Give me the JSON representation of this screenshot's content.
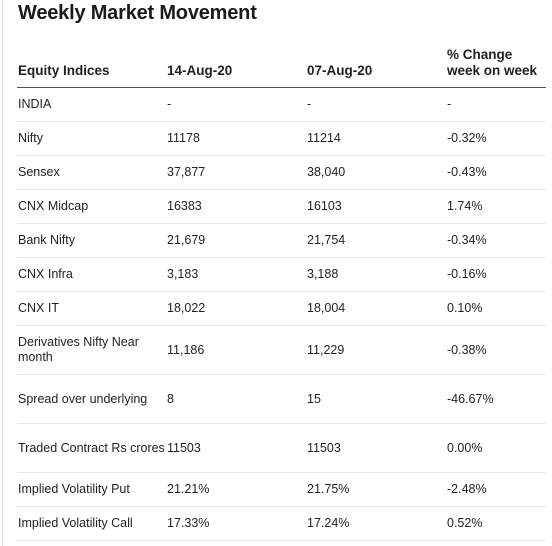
{
  "title": "Weekly Market Movement",
  "headers": [
    "Equity Indices",
    "14-Aug-20",
    "07-Aug-20",
    "% Change week on week"
  ],
  "rows": [
    [
      "INDIA",
      "-",
      "-",
      "-"
    ],
    [
      "Nifty",
      "11178",
      "11214",
      "-0.32%"
    ],
    [
      "Sensex",
      "37,877",
      "38,040",
      "-0.43%"
    ],
    [
      "CNX Midcap",
      "16383",
      "16103",
      "1.74%"
    ],
    [
      "Bank Nifty",
      "21,679",
      "21,754",
      "-0.34%"
    ],
    [
      "CNX Infra",
      "3,183",
      "3,188",
      "-0.16%"
    ],
    [
      "CNX IT",
      "18,022",
      "18,004",
      "0.10%"
    ],
    [
      "Derivatives Nifty Near month",
      "11,186",
      "11,229",
      "-0.38%"
    ],
    [
      "Spread over underlying",
      "8",
      "15",
      "-46.67%"
    ],
    [
      "Traded Contract Rs crores",
      "11503",
      "11503",
      "0.00%"
    ],
    [
      "Implied Volatility Put",
      "21.21%",
      "21.75%",
      "-2.48%"
    ],
    [
      "Implied Volatility Call",
      "17.33%",
      "17.24%",
      "0.52%"
    ]
  ]
}
